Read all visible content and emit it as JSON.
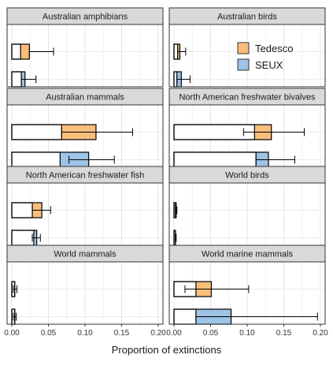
{
  "chart_data": {
    "type": "bar",
    "orientation": "horizontal",
    "facet_layout": "4 rows x 2 columns",
    "xlabel": "Proportion of extinctions",
    "xlim": [
      0,
      0.2
    ],
    "x_ticks": [
      "0.00",
      "0.05",
      "0.10",
      "0.15",
      "0.20"
    ],
    "series": [
      {
        "name": "Tedesco",
        "color": "#F9BE7C"
      },
      {
        "name": "SEUX",
        "color": "#9DC3E6"
      }
    ],
    "legend_position": "top-right of Australian birds panel",
    "grid": true,
    "panels": [
      {
        "title": "Australian amphibians",
        "bars": [
          {
            "series": "Tedesco",
            "base": 0.012,
            "value": 0.024,
            "err_low": 0.024,
            "err_high": 0.057
          },
          {
            "series": "SEUX",
            "base": 0.013,
            "value": 0.018,
            "err_low": 0.013,
            "err_high": 0.033
          }
        ]
      },
      {
        "title": "Australian birds",
        "bars": [
          {
            "series": "Tedesco",
            "base": 0.005,
            "value": 0.008,
            "err_low": 0.005,
            "err_high": 0.016
          },
          {
            "series": "SEUX",
            "base": 0.004,
            "value": 0.01,
            "err_low": 0.004,
            "err_high": 0.022
          }
        ]
      },
      {
        "title": "Australian mammals",
        "bars": [
          {
            "series": "Tedesco",
            "base": 0.068,
            "value": 0.115,
            "err_low": 0.068,
            "err_high": 0.165
          },
          {
            "series": "SEUX",
            "base": 0.066,
            "value": 0.105,
            "err_low": 0.078,
            "err_high": 0.14
          }
        ]
      },
      {
        "title": "North American freshwater bivalves",
        "bars": [
          {
            "series": "Tedesco",
            "base": 0.11,
            "value": 0.133,
            "err_low": 0.095,
            "err_high": 0.178
          },
          {
            "series": "SEUX",
            "base": 0.112,
            "value": 0.129,
            "err_low": 0.112,
            "err_high": 0.165
          }
        ]
      },
      {
        "title": "North American freshwater fish",
        "bars": [
          {
            "series": "Tedesco",
            "base": 0.028,
            "value": 0.041,
            "err_low": 0.028,
            "err_high": 0.053
          },
          {
            "series": "SEUX",
            "base": 0.03,
            "value": 0.034,
            "err_low": 0.028,
            "err_high": 0.039
          }
        ]
      },
      {
        "title": "World birds",
        "bars": [
          {
            "series": "Tedesco",
            "base": 0.002,
            "value": 0.003,
            "err_low": 0.002,
            "err_high": 0.004
          },
          {
            "series": "SEUX",
            "base": 0.002,
            "value": 0.002,
            "err_low": 0.002,
            "err_high": 0.003
          }
        ]
      },
      {
        "title": "World mammals",
        "bars": [
          {
            "series": "Tedesco",
            "base": 0.004,
            "value": 0.004,
            "err_low": 0.002,
            "err_high": 0.007
          },
          {
            "series": "SEUX",
            "base": 0.004,
            "value": 0.004,
            "err_low": 0.002,
            "err_high": 0.006
          }
        ]
      },
      {
        "title": "World marine mammals",
        "bars": [
          {
            "series": "Tedesco",
            "base": 0.03,
            "value": 0.051,
            "err_low": 0.015,
            "err_high": 0.102
          },
          {
            "series": "SEUX",
            "base": 0.03,
            "value": 0.078,
            "err_low": 0.03,
            "err_high": 0.196
          }
        ]
      }
    ]
  }
}
